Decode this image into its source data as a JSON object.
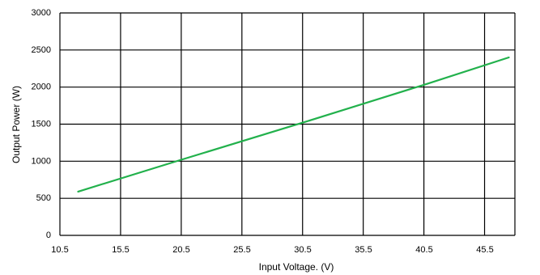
{
  "chart_data": {
    "type": "line",
    "title": "",
    "xlabel": "Input Voltage. (V)",
    "ylabel": "Output Power (W)",
    "xlim": [
      10.5,
      48
    ],
    "ylim": [
      0,
      3000
    ],
    "x_ticks": [
      "10.5",
      "15.5",
      "20.5",
      "25.5",
      "30.5",
      "35.5",
      "40.5",
      "45.5"
    ],
    "y_ticks": [
      "0",
      "500",
      "1000",
      "1500",
      "2000",
      "2500",
      "3000"
    ],
    "grid": true,
    "legend": "none",
    "series": [
      {
        "color": "#22b14c",
        "x": [
          12,
          20.5,
          30.5,
          40.5,
          47.5
        ],
        "y": [
          590,
          1020,
          1520,
          2030,
          2400
        ]
      }
    ]
  }
}
